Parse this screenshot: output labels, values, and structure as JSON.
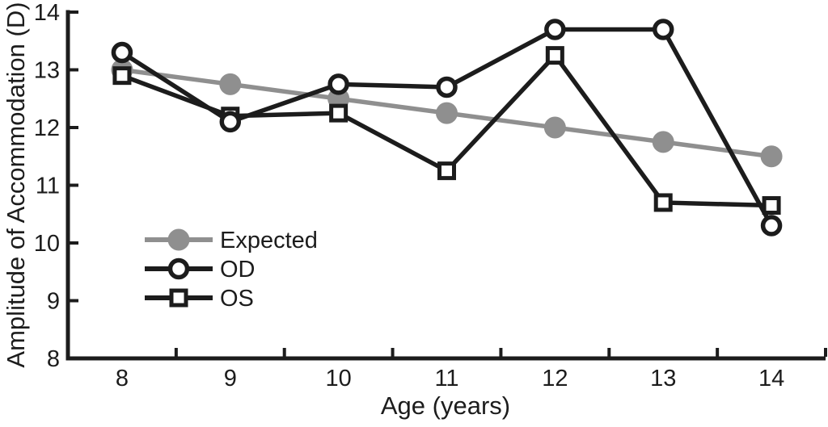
{
  "figure": {
    "background": "#ffffff",
    "ink_color": "#1c1c1c",
    "accent_gray": "#8f8f8f"
  },
  "chart_data": {
    "type": "line",
    "title": "",
    "xlabel": "Age (years)",
    "ylabel": "Amplitude of Accommodation (D)",
    "x": [
      8,
      9,
      10,
      11,
      12,
      13,
      14
    ],
    "x_tick_labels": [
      "8",
      "9",
      "10",
      "11",
      "12",
      "13",
      "14"
    ],
    "x_tick_marks": [
      8.5,
      9.5,
      10.5,
      11.5,
      12.5,
      13.5,
      14.5
    ],
    "y_ticks": [
      8,
      9,
      10,
      11,
      12,
      13,
      14
    ],
    "y_tick_labels": [
      "8",
      "9",
      "10",
      "11",
      "12",
      "13",
      "14"
    ],
    "xlim": [
      7.5,
      14.5
    ],
    "ylim": [
      8,
      14
    ],
    "grid": false,
    "legend_position": "inside-lower-left",
    "draw_order": [
      "Expected",
      "OS",
      "OD"
    ],
    "series": [
      {
        "name": "Expected",
        "color": "#8f8f8f",
        "marker": "filled-circle",
        "values": [
          13.0,
          12.75,
          12.5,
          12.25,
          12.0,
          11.75,
          11.5
        ]
      },
      {
        "name": "OD",
        "color": "#1c1c1c",
        "marker": "open-circle",
        "values": [
          13.3,
          12.1,
          12.75,
          12.7,
          13.7,
          13.7,
          10.3
        ]
      },
      {
        "name": "OS",
        "color": "#1c1c1c",
        "marker": "open-square",
        "values": [
          12.9,
          12.2,
          12.25,
          11.25,
          13.25,
          10.7,
          10.65
        ]
      }
    ]
  }
}
